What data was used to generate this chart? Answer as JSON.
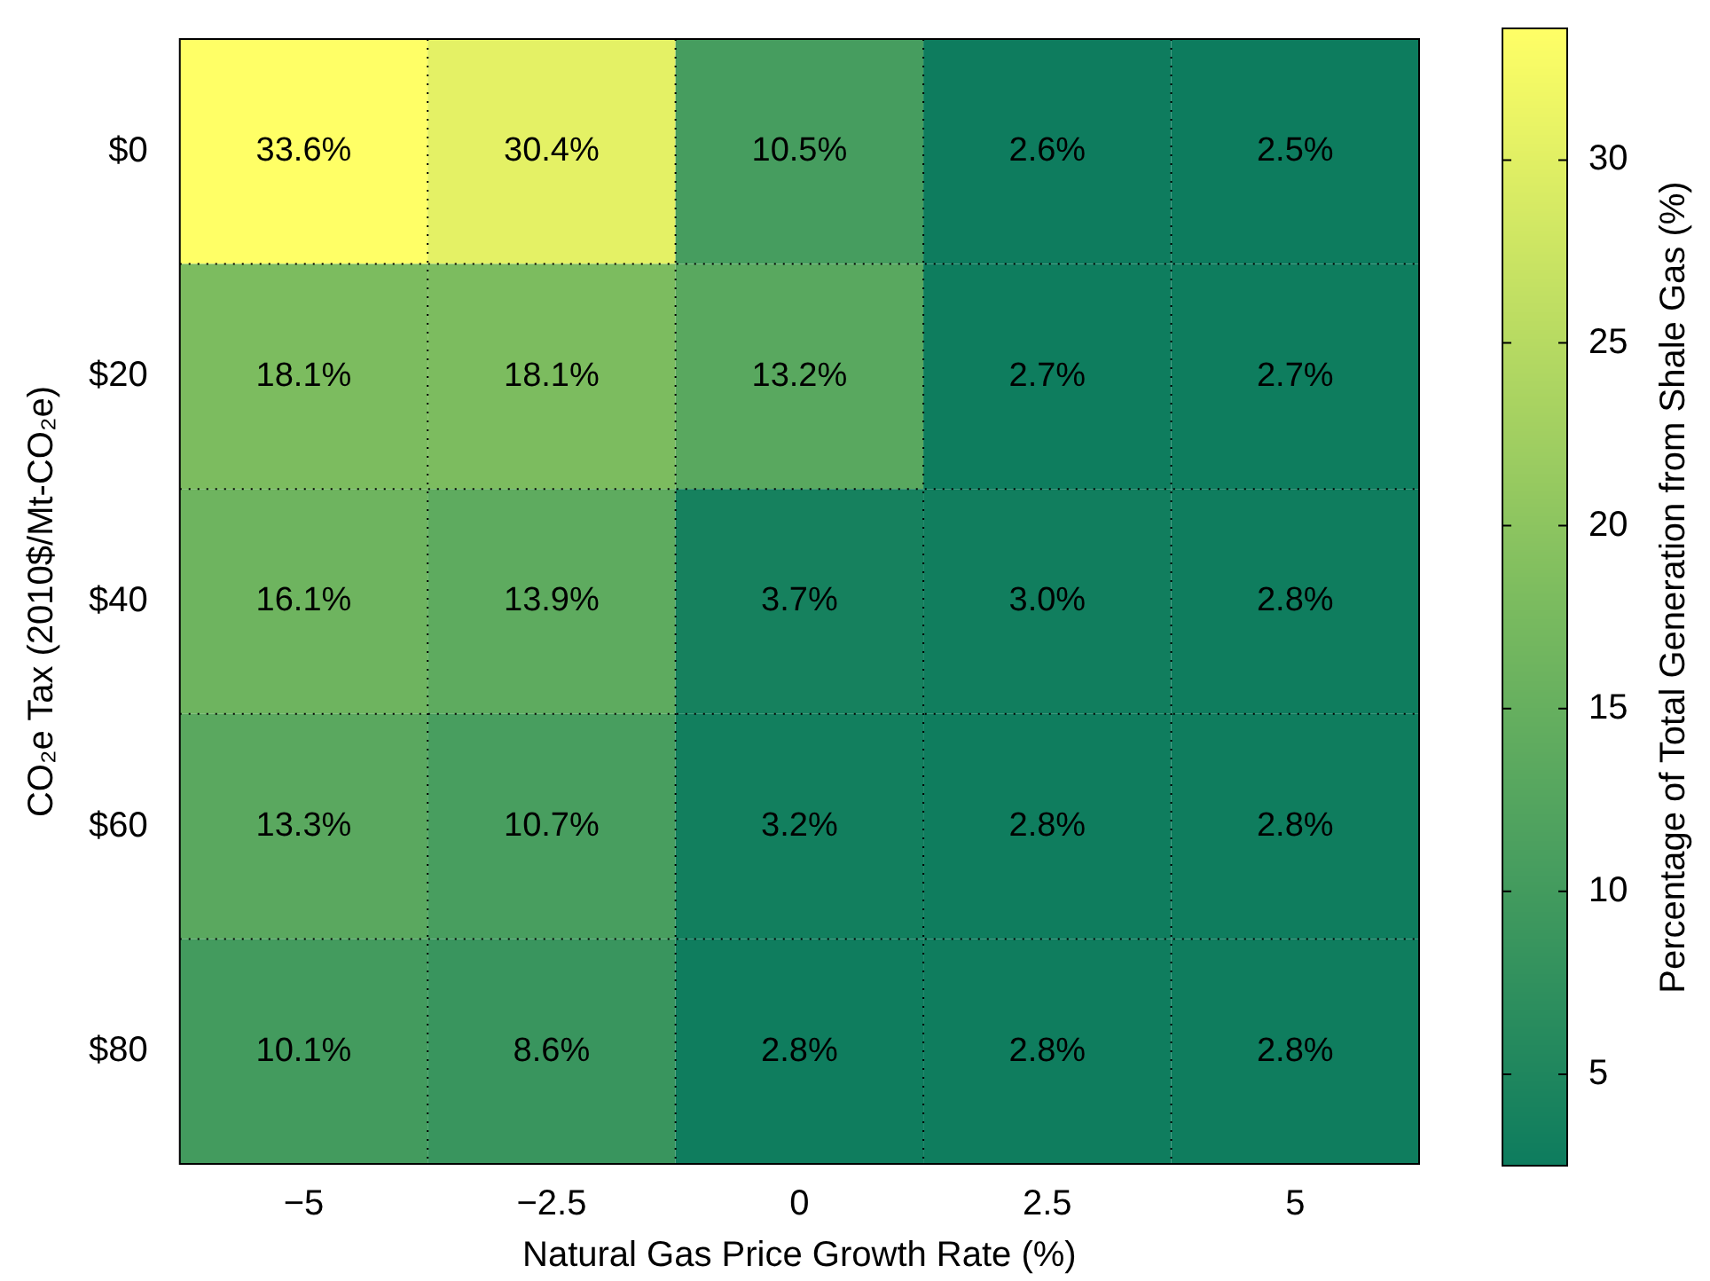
{
  "chart_data": {
    "type": "heatmap",
    "xlabel": "Natural Gas Price Growth Rate (%)",
    "ylabel": "CO₂e Tax (2010$/Mt-CO₂e)",
    "clabel": "Percentage of Total Generation from Shale Gas (%)",
    "categories": [
      "−5",
      "−2.5",
      "0",
      "2.5",
      "5"
    ],
    "y_categories": [
      "$0",
      "$20",
      "$40",
      "$60",
      "$80"
    ],
    "cells": [
      [
        33.6,
        30.4,
        10.5,
        2.6,
        2.5
      ],
      [
        18.1,
        18.1,
        13.2,
        2.7,
        2.7
      ],
      [
        16.1,
        13.9,
        3.7,
        3.0,
        2.8
      ],
      [
        13.3,
        10.7,
        3.2,
        2.8,
        2.8
      ],
      [
        10.1,
        8.6,
        2.8,
        2.8,
        2.8
      ]
    ],
    "cell_labels": [
      [
        "33.6%",
        "30.4%",
        "10.5%",
        "2.6%",
        "2.5%"
      ],
      [
        "18.1%",
        "18.1%",
        "13.2%",
        "2.7%",
        "2.7%"
      ],
      [
        "16.1%",
        "13.9%",
        "3.7%",
        "3.0%",
        "2.8%"
      ],
      [
        "13.3%",
        "10.7%",
        "3.2%",
        "2.8%",
        "2.8%"
      ],
      [
        "10.1%",
        "8.6%",
        "2.8%",
        "2.8%",
        "2.8%"
      ]
    ],
    "clim": [
      2.5,
      33.6
    ],
    "cticks": [
      5,
      10,
      15,
      20,
      25,
      30
    ],
    "grid": true
  }
}
